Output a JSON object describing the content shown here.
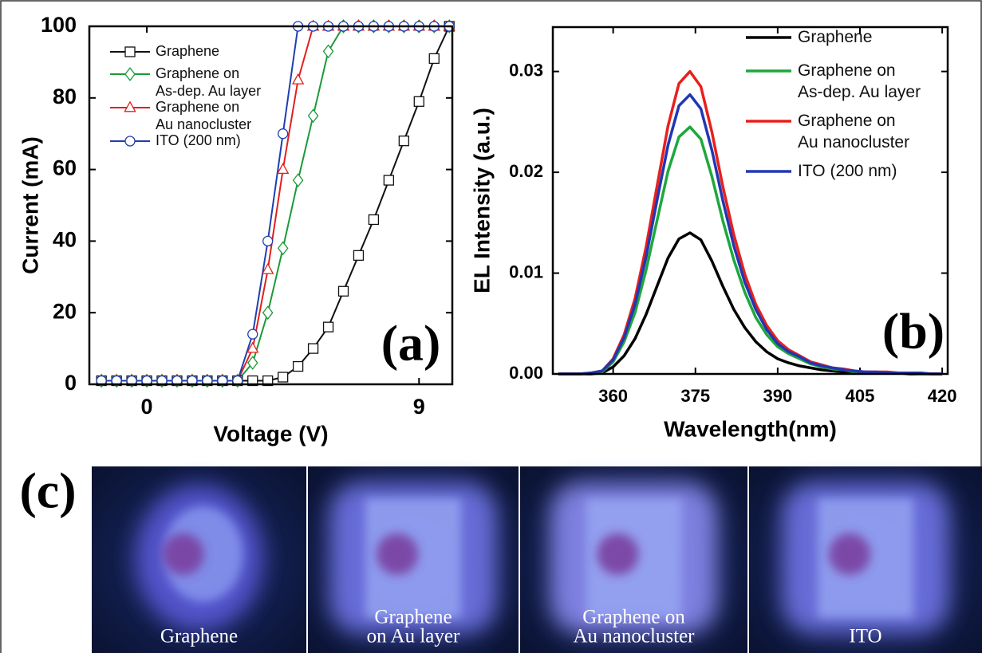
{
  "chart_data": [
    {
      "type": "line",
      "annotation": "(a)",
      "x_label": "Voltage (V)",
      "y_label": "Current (mA)",
      "x": [
        -1.5,
        -1,
        -0.5,
        0,
        0.5,
        1,
        1.5,
        2,
        2.5,
        3,
        3.5,
        4,
        4.5,
        5,
        5.5,
        6,
        6.5,
        7,
        7.5,
        8,
        8.5,
        9,
        9.5,
        10
      ],
      "xlim": [
        -1.9,
        10.1
      ],
      "xticks": [
        0,
        9
      ],
      "ylim": [
        0,
        100
      ],
      "yticks": [
        0,
        20,
        40,
        60,
        80,
        100
      ],
      "legend": "top-left",
      "series": [
        {
          "name": "Graphene",
          "color": "#111111",
          "marker": "square",
          "values": [
            1,
            1,
            1,
            1,
            1,
            1,
            1,
            1,
            1,
            1,
            1,
            1,
            2,
            5,
            10,
            16,
            26,
            36,
            46,
            57,
            68,
            79,
            91,
            100
          ]
        },
        {
          "name": "Graphene on\nAs-dep. Au layer",
          "color": "#1a9a3a",
          "marker": "diamond",
          "values": [
            1,
            1,
            1,
            1,
            1,
            1,
            1,
            1,
            1,
            1,
            6,
            20,
            38,
            57,
            75,
            93,
            100,
            100,
            100,
            100,
            100,
            100,
            100,
            100
          ]
        },
        {
          "name": "Graphene on\nAu nanocluster",
          "color": "#e0201c",
          "marker": "triangle",
          "values": [
            1,
            1,
            1,
            1,
            1,
            1,
            1,
            1,
            1,
            1,
            10,
            32,
            60,
            85,
            100,
            100,
            100,
            100,
            100,
            100,
            100,
            100,
            100,
            100
          ]
        },
        {
          "name": "ITO (200 nm)",
          "color": "#1f3fb0",
          "marker": "circle",
          "values": [
            1,
            1,
            1,
            1,
            1,
            1,
            1,
            1,
            1,
            1,
            14,
            40,
            70,
            100,
            100,
            100,
            100,
            100,
            100,
            100,
            100,
            100,
            100,
            100
          ]
        }
      ]
    },
    {
      "type": "line",
      "annotation": "(b)",
      "x_label": "Wavelength(nm)",
      "y_label": "EL Intensity (a.u.)",
      "x": [
        350,
        352,
        354,
        356,
        358,
        360,
        362,
        364,
        366,
        368,
        370,
        372,
        374,
        376,
        378,
        380,
        382,
        384,
        386,
        388,
        390,
        392,
        394,
        396,
        398,
        400,
        402,
        404,
        406,
        408,
        410,
        412,
        414,
        416,
        418,
        420
      ],
      "xlim": [
        349,
        421
      ],
      "xticks": [
        360,
        375,
        390,
        405,
        420
      ],
      "ylim": [
        0,
        0.0344
      ],
      "yticks": [
        {
          "value": 0,
          "label": "0.00"
        },
        0.01,
        0.02,
        0.03
      ],
      "legend": "top-right",
      "series": [
        {
          "name": "Graphene",
          "color": "#000000",
          "marker": "none",
          "values": [
            0,
            0,
            0,
            0,
            0.0001,
            0.0007,
            0.0018,
            0.0035,
            0.0059,
            0.0087,
            0.0115,
            0.0134,
            0.014,
            0.0133,
            0.0112,
            0.0087,
            0.0064,
            0.0046,
            0.0032,
            0.0022,
            0.0015,
            0.0011,
            0.0008,
            0.0006,
            0.0004,
            0.0003,
            0.0002,
            0.0001,
            0.0001,
            0.0001,
            0.0001,
            0.0001,
            0,
            0,
            0,
            0
          ]
        },
        {
          "name": "Graphene on\nAs-dep. Au layer",
          "color": "#1ea83c",
          "marker": "none",
          "values": [
            0,
            0,
            0,
            0.0001,
            0.0002,
            0.0012,
            0.0032,
            0.0061,
            0.0103,
            0.0152,
            0.0201,
            0.0235,
            0.0245,
            0.0233,
            0.0196,
            0.0152,
            0.0113,
            0.0081,
            0.0056,
            0.0039,
            0.0027,
            0.002,
            0.0015,
            0.001,
            0.0007,
            0.0005,
            0.0004,
            0.0002,
            0.0002,
            0.0001,
            0.0001,
            0.0001,
            0.0001,
            0,
            0,
            0
          ]
        },
        {
          "name": "Graphene on\nAu nanocluster",
          "color": "#e8201c",
          "marker": "none",
          "values": [
            0,
            0,
            0,
            0.0001,
            0.0003,
            0.0015,
            0.0039,
            0.0075,
            0.0126,
            0.0186,
            0.0246,
            0.0288,
            0.03,
            0.0285,
            0.024,
            0.0186,
            0.0138,
            0.0099,
            0.0069,
            0.0048,
            0.0033,
            0.0024,
            0.0018,
            0.0012,
            0.0009,
            0.0006,
            0.0005,
            0.0003,
            0.0002,
            0.0002,
            0.0002,
            0.0001,
            0.0001,
            0.0001,
            0,
            0
          ]
        },
        {
          "name": "ITO (200 nm)",
          "color": "#2236b4",
          "marker": "none",
          "values": [
            0,
            0,
            0,
            0.0001,
            0.0003,
            0.0014,
            0.0036,
            0.0069,
            0.0116,
            0.0172,
            0.0227,
            0.0266,
            0.0277,
            0.0263,
            0.0222,
            0.0172,
            0.0127,
            0.0091,
            0.0064,
            0.0044,
            0.003,
            0.0022,
            0.0017,
            0.0011,
            0.0008,
            0.0006,
            0.0004,
            0.0003,
            0.0002,
            0.0002,
            0.0001,
            0.0001,
            0.0001,
            0.0001,
            0,
            0
          ]
        }
      ]
    }
  ],
  "photos": {
    "label": "(c)",
    "captions": [
      [
        "Graphene"
      ],
      [
        "Graphene",
        "on Au layer"
      ],
      [
        "Graphene on",
        "Au nanocluster"
      ],
      [
        "ITO"
      ]
    ]
  }
}
